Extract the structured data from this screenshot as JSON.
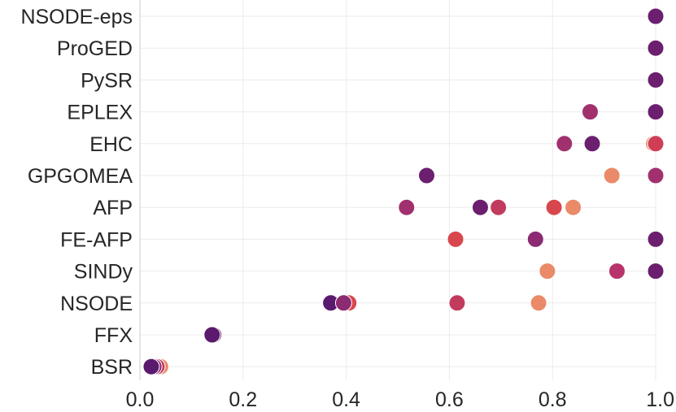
{
  "chart_data": {
    "type": "scatter",
    "orientation": "horizontal",
    "categories": [
      "NSODE-eps",
      "ProGED",
      "PySR",
      "EPLEX",
      "EHC",
      "GPGOMEA",
      "AFP",
      "FE-AFP",
      "SINDy",
      "NSODE",
      "FFX",
      "BSR"
    ],
    "xlim": [
      0.0,
      1.0
    ],
    "xticks": [
      0.0,
      0.2,
      0.4,
      0.6,
      0.8,
      1.0
    ],
    "xtick_labels": [
      "0.0",
      "0.2",
      "0.4",
      "0.6",
      "0.8",
      "1.0"
    ],
    "grid": true,
    "points": [
      {
        "category": "NSODE-eps",
        "x": 1.0,
        "color": "#6b1f6e"
      },
      {
        "category": "ProGED",
        "x": 1.0,
        "color": "#6b1f6e"
      },
      {
        "category": "PySR",
        "x": 1.0,
        "color": "#6b1f6e"
      },
      {
        "category": "EPLEX",
        "x": 0.873,
        "color": "#a1306f"
      },
      {
        "category": "EPLEX",
        "x": 1.0,
        "color": "#6b1f6e"
      },
      {
        "category": "EHC",
        "x": 0.823,
        "color": "#a1306f"
      },
      {
        "category": "EHC",
        "x": 0.877,
        "color": "#6b1f6e"
      },
      {
        "category": "EHC",
        "x": 0.996,
        "color": "#ea8a68"
      },
      {
        "category": "EHC",
        "x": 1.0,
        "color": "#cf3e55"
      },
      {
        "category": "GPGOMEA",
        "x": 0.556,
        "color": "#6b1f6e"
      },
      {
        "category": "GPGOMEA",
        "x": 0.915,
        "color": "#ea8a68"
      },
      {
        "category": "GPGOMEA",
        "x": 1.0,
        "color": "#a1306f"
      },
      {
        "category": "AFP",
        "x": 0.517,
        "color": "#a1306f"
      },
      {
        "category": "AFP",
        "x": 0.66,
        "color": "#6b1f6e"
      },
      {
        "category": "AFP",
        "x": 0.695,
        "color": "#c13b5f"
      },
      {
        "category": "AFP",
        "x": 0.803,
        "color": "#d9474e"
      },
      {
        "category": "AFP",
        "x": 0.84,
        "color": "#ea8a68"
      },
      {
        "category": "FE-AFP",
        "x": 0.612,
        "color": "#d9474e"
      },
      {
        "category": "FE-AFP",
        "x": 0.767,
        "color": "#8c2a72"
      },
      {
        "category": "FE-AFP",
        "x": 1.0,
        "color": "#6b1f6e"
      },
      {
        "category": "SINDy",
        "x": 0.79,
        "color": "#ea8a68"
      },
      {
        "category": "SINDy",
        "x": 0.925,
        "color": "#b8336a"
      },
      {
        "category": "SINDy",
        "x": 1.0,
        "color": "#6b1f6e"
      },
      {
        "category": "NSODE",
        "x": 0.37,
        "color": "#5a1a6e"
      },
      {
        "category": "NSODE",
        "x": 0.405,
        "color": "#d9474e"
      },
      {
        "category": "NSODE",
        "x": 0.395,
        "color": "#8c2a72"
      },
      {
        "category": "NSODE",
        "x": 0.615,
        "color": "#c13b5f"
      },
      {
        "category": "NSODE",
        "x": 0.773,
        "color": "#ea8a68"
      },
      {
        "category": "FFX",
        "x": 0.143,
        "color": "#8c2a72"
      },
      {
        "category": "FFX",
        "x": 0.14,
        "color": "#5a1a6e"
      },
      {
        "category": "BSR",
        "x": 0.04,
        "color": "#ea8a68"
      },
      {
        "category": "BSR",
        "x": 0.033,
        "color": "#c13b5f"
      },
      {
        "category": "BSR",
        "x": 0.027,
        "color": "#8c2a72"
      },
      {
        "category": "BSR",
        "x": 0.022,
        "color": "#5a1a6e"
      }
    ]
  }
}
